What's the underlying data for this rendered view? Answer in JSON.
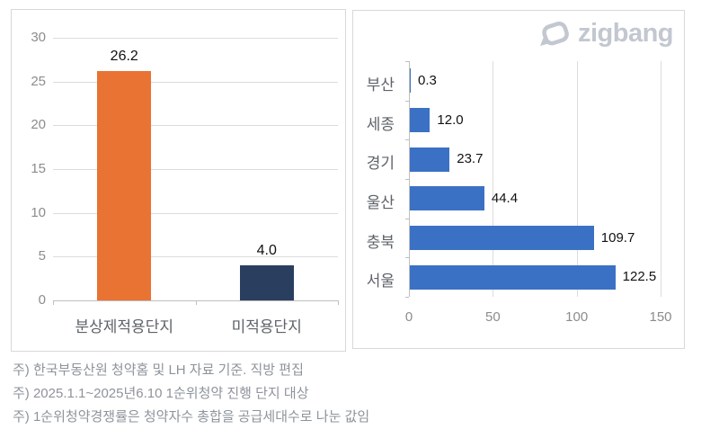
{
  "logo": {
    "text": "zigbang",
    "color": "#C2C7D0"
  },
  "notes": [
    "주) 한국부동산원 청약홈 및 LH 자료 기준. 직방 편집",
    "주) 2025.1.1~2025년6.10 1순위청약 진행 단지 대상",
    "주) 1순위청약경쟁률은 청약자수 총합을 공급세대수로 나눈 값임"
  ],
  "colors": {
    "grid": "#DCDCDC",
    "axis": "#BFBFBF",
    "tick_label": "#8C8C8C",
    "category_label": "#5E6369",
    "value_label": "#111111",
    "panel_border": "#D8D8D8"
  },
  "chart_data": [
    {
      "type": "bar",
      "orientation": "vertical",
      "title": "",
      "categories": [
        "분상제적용단지",
        "미적용단지"
      ],
      "values": [
        26.2,
        4.0
      ],
      "data_labels": [
        "26.2",
        "4.0"
      ],
      "bar_colors": [
        "#E87333",
        "#2A3F5F"
      ],
      "ylim": [
        0,
        30
      ],
      "yticks": [
        0,
        5,
        10,
        15,
        20,
        25,
        30
      ],
      "grid": "horizontal",
      "legend": "none"
    },
    {
      "type": "bar",
      "orientation": "horizontal",
      "title": "",
      "categories": [
        "부산",
        "세종",
        "경기",
        "울산",
        "충북",
        "서울"
      ],
      "values": [
        0.3,
        12.0,
        23.7,
        44.4,
        109.7,
        122.5
      ],
      "data_labels": [
        "0.3",
        "12.0",
        "23.7",
        "44.4",
        "109.7",
        "122.5"
      ],
      "bar_color": "#3B71C4",
      "xlim": [
        0,
        150
      ],
      "xticks": [
        0,
        50,
        100,
        150
      ],
      "grid": "vertical",
      "legend": "none"
    }
  ]
}
